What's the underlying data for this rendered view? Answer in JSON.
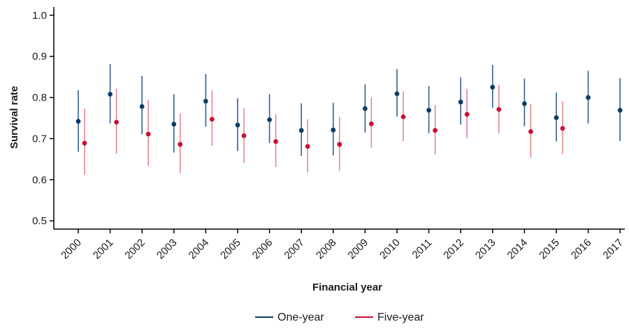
{
  "chart_data": {
    "type": "scatter",
    "xlabel": "Financial year",
    "ylabel": "Survival rate",
    "ylim": [
      0.48,
      1.02
    ],
    "yticks": [
      "0.5",
      "0.6",
      "0.7",
      "0.8",
      "0.9",
      "1.0"
    ],
    "categories": [
      "2000",
      "2001",
      "2002",
      "2003",
      "2004",
      "2005",
      "2006",
      "2007",
      "2008",
      "2009",
      "2010",
      "2011",
      "2012",
      "2013",
      "2014",
      "2015",
      "2016",
      "2017"
    ],
    "grid": false,
    "legend_position": "bottom",
    "series": [
      {
        "name": "One-year",
        "color": "#2d5f94",
        "point_color": "#0d3b66",
        "values": [
          0.742,
          0.808,
          0.778,
          0.735,
          0.791,
          0.733,
          0.746,
          0.72,
          0.721,
          0.773,
          0.809,
          0.769,
          0.789,
          0.825,
          0.785,
          0.751,
          0.8,
          0.769
        ],
        "lower": [
          0.668,
          0.737,
          0.711,
          0.666,
          0.729,
          0.67,
          0.689,
          0.658,
          0.659,
          0.715,
          0.754,
          0.713,
          0.734,
          0.775,
          0.73,
          0.693,
          0.737,
          0.694
        ],
        "upper": [
          0.818,
          0.881,
          0.852,
          0.808,
          0.857,
          0.798,
          0.808,
          0.786,
          0.787,
          0.832,
          0.869,
          0.828,
          0.849,
          0.879,
          0.846,
          0.812,
          0.865,
          0.847
        ]
      },
      {
        "name": "Five-year",
        "color": "#e8858c",
        "point_color": "#c8102e",
        "values": [
          0.689,
          0.74,
          0.711,
          0.686,
          0.747,
          0.707,
          0.693,
          0.681,
          0.686,
          0.736,
          0.753,
          0.72,
          0.759,
          0.771,
          0.717,
          0.725,
          null,
          null
        ],
        "lower": [
          0.612,
          0.663,
          0.634,
          0.616,
          0.682,
          0.641,
          0.631,
          0.618,
          0.622,
          0.678,
          0.694,
          0.661,
          0.701,
          0.713,
          0.653,
          0.663,
          null,
          null
        ],
        "upper": [
          0.773,
          0.822,
          0.794,
          0.761,
          0.817,
          0.774,
          0.759,
          0.747,
          0.753,
          0.8,
          0.815,
          0.782,
          0.821,
          0.831,
          0.785,
          0.791,
          null,
          null
        ]
      }
    ]
  }
}
